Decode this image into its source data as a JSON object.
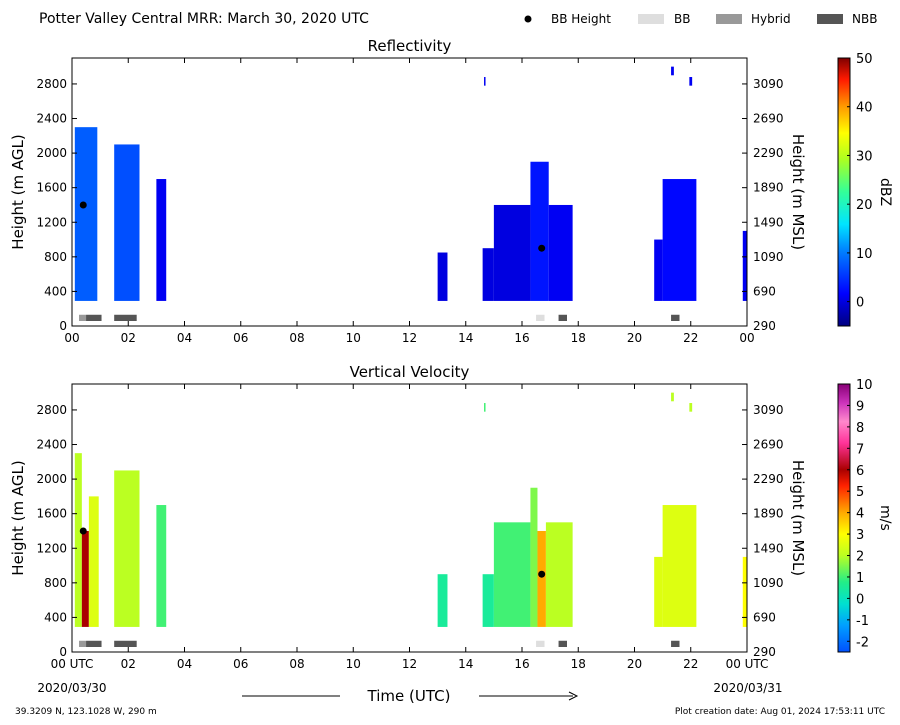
{
  "figure": {
    "title": "Potter Valley Central MRR:  March 30, 2020 UTC",
    "xlabel": "Time (UTC)",
    "start_date": "2020/03/30",
    "end_date": "2020/03/31",
    "location": "39.3209 N, 123.1028 W, 290 m",
    "creation": "Plot creation date: Aug 01, 2024 17:53:11 UTC"
  },
  "legend": {
    "items": [
      {
        "label": "BB Height",
        "kind": "dot",
        "color": "#000000"
      },
      {
        "label": "BB",
        "kind": "bar",
        "color": "#dedede"
      },
      {
        "label": "Hybrid",
        "kind": "bar",
        "color": "#999999"
      },
      {
        "label": "NBB",
        "kind": "bar",
        "color": "#555555"
      }
    ]
  },
  "chart_data": [
    {
      "type": "heatmap",
      "title": "Reflectivity",
      "ylabel": "Height (m AGL)",
      "ylabel2": "Height (m MSL)",
      "colorbar_label": "dBZ",
      "colorbar_ticks": [
        "50",
        "40",
        "30",
        "20",
        "10",
        "0"
      ],
      "colorbar_range": [
        -5,
        50
      ],
      "xlim": [
        0,
        24
      ],
      "ylim": [
        0,
        3100
      ],
      "xticks": [
        "00",
        "02",
        "04",
        "06",
        "08",
        "10",
        "12",
        "14",
        "16",
        "18",
        "20",
        "22",
        "00"
      ],
      "yticks": [
        "0",
        "400",
        "800",
        "1200",
        "1600",
        "2000",
        "2400",
        "2800"
      ],
      "yticks2": [
        "290",
        "690",
        "1090",
        "1490",
        "1890",
        "2290",
        "2690",
        "3090"
      ],
      "bb_height": [
        {
          "time": 0.4,
          "height": 1400
        },
        {
          "time": 16.7,
          "height": 900
        }
      ],
      "precip_type": [
        {
          "start": 0.25,
          "end": 0.5,
          "type": "Hybrid"
        },
        {
          "start": 0.5,
          "end": 1.05,
          "type": "NBB"
        },
        {
          "start": 1.5,
          "end": 2.3,
          "type": "NBB"
        },
        {
          "start": 16.5,
          "end": 16.8,
          "type": "BB"
        },
        {
          "start": 17.3,
          "end": 17.6,
          "type": "NBB"
        },
        {
          "start": 21.3,
          "end": 21.6,
          "type": "NBB"
        }
      ],
      "echoes": [
        {
          "start": 0.1,
          "end": 0.9,
          "top": 2300,
          "value": 8
        },
        {
          "start": 1.5,
          "end": 2.4,
          "top": 2100,
          "value": 7
        },
        {
          "start": 3.0,
          "end": 3.35,
          "top": 1700,
          "value": 1
        },
        {
          "start": 13.0,
          "end": 13.35,
          "top": 850,
          "value": 0
        },
        {
          "start": 14.6,
          "end": 15.0,
          "top": 900,
          "value": 0
        },
        {
          "start": 15.0,
          "end": 16.3,
          "top": 1400,
          "value": 0
        },
        {
          "start": 16.3,
          "end": 16.95,
          "top": 1900,
          "value": 3
        },
        {
          "start": 16.95,
          "end": 17.8,
          "top": 1400,
          "value": 1
        },
        {
          "start": 20.7,
          "end": 21.0,
          "top": 1000,
          "value": 1
        },
        {
          "start": 21.0,
          "end": 22.2,
          "top": 1700,
          "value": 2
        },
        {
          "start": 23.85,
          "end": 24.0,
          "top": 1100,
          "value": 1
        },
        {
          "start": 14.65,
          "end": 14.7,
          "top": 2880,
          "value": 1
        },
        {
          "start": 21.3,
          "end": 21.4,
          "top": 3000,
          "value": 1
        },
        {
          "start": 21.95,
          "end": 22.05,
          "top": 2880,
          "value": 1
        }
      ]
    },
    {
      "type": "heatmap",
      "title": "Vertical Velocity",
      "ylabel": "Height (m AGL)",
      "ylabel2": "Height (m MSL)",
      "colorbar_label": "m/s",
      "colorbar_ticks": [
        "10",
        "9",
        "8",
        "7",
        "6",
        "5",
        "4",
        "3",
        "2",
        "1",
        "0",
        "-1",
        "-2"
      ],
      "colorbar_range": [
        -2.5,
        10
      ],
      "xlim": [
        0,
        24
      ],
      "ylim": [
        0,
        3100
      ],
      "xticks": [
        "00 UTC",
        "02",
        "04",
        "06",
        "08",
        "10",
        "12",
        "14",
        "16",
        "18",
        "20",
        "22",
        "00 UTC"
      ],
      "yticks": [
        "0",
        "400",
        "800",
        "1200",
        "1600",
        "2000",
        "2400",
        "2800"
      ],
      "yticks2": [
        "290",
        "690",
        "1090",
        "1490",
        "1890",
        "2290",
        "2690",
        "3090"
      ],
      "bb_height": [
        {
          "time": 0.4,
          "height": 1400
        },
        {
          "time": 16.7,
          "height": 900
        }
      ],
      "precip_type": [
        {
          "start": 0.25,
          "end": 0.5,
          "type": "Hybrid"
        },
        {
          "start": 0.5,
          "end": 1.05,
          "type": "NBB"
        },
        {
          "start": 1.5,
          "end": 2.3,
          "type": "NBB"
        },
        {
          "start": 16.5,
          "end": 16.8,
          "type": "BB"
        },
        {
          "start": 17.3,
          "end": 17.6,
          "type": "NBB"
        },
        {
          "start": 21.3,
          "end": 21.6,
          "type": "NBB"
        }
      ],
      "echoes": [
        {
          "start": 0.1,
          "end": 0.35,
          "top": 2300,
          "value": 2
        },
        {
          "start": 0.35,
          "end": 0.6,
          "top": 1400,
          "value": 6
        },
        {
          "start": 0.6,
          "end": 0.95,
          "top": 1800,
          "value": 2.5
        },
        {
          "start": 1.5,
          "end": 2.4,
          "top": 2100,
          "value": 2
        },
        {
          "start": 3.0,
          "end": 3.35,
          "top": 1700,
          "value": 1
        },
        {
          "start": 13.0,
          "end": 13.35,
          "top": 900,
          "value": 0.5
        },
        {
          "start": 14.6,
          "end": 15.0,
          "top": 900,
          "value": 0.5
        },
        {
          "start": 15.0,
          "end": 16.3,
          "top": 1500,
          "value": 1
        },
        {
          "start": 16.3,
          "end": 16.55,
          "top": 1900,
          "value": 1.5
        },
        {
          "start": 16.55,
          "end": 16.85,
          "top": 1400,
          "value": 4
        },
        {
          "start": 16.85,
          "end": 17.8,
          "top": 1500,
          "value": 2
        },
        {
          "start": 20.7,
          "end": 21.0,
          "top": 1100,
          "value": 2.5
        },
        {
          "start": 21.0,
          "end": 22.2,
          "top": 1700,
          "value": 2.5
        },
        {
          "start": 23.85,
          "end": 24.0,
          "top": 1100,
          "value": 3
        },
        {
          "start": 14.65,
          "end": 14.7,
          "top": 2880,
          "value": 1
        },
        {
          "start": 21.3,
          "end": 21.4,
          "top": 3000,
          "value": 2
        },
        {
          "start": 21.95,
          "end": 22.05,
          "top": 2880,
          "value": 2
        }
      ]
    }
  ]
}
